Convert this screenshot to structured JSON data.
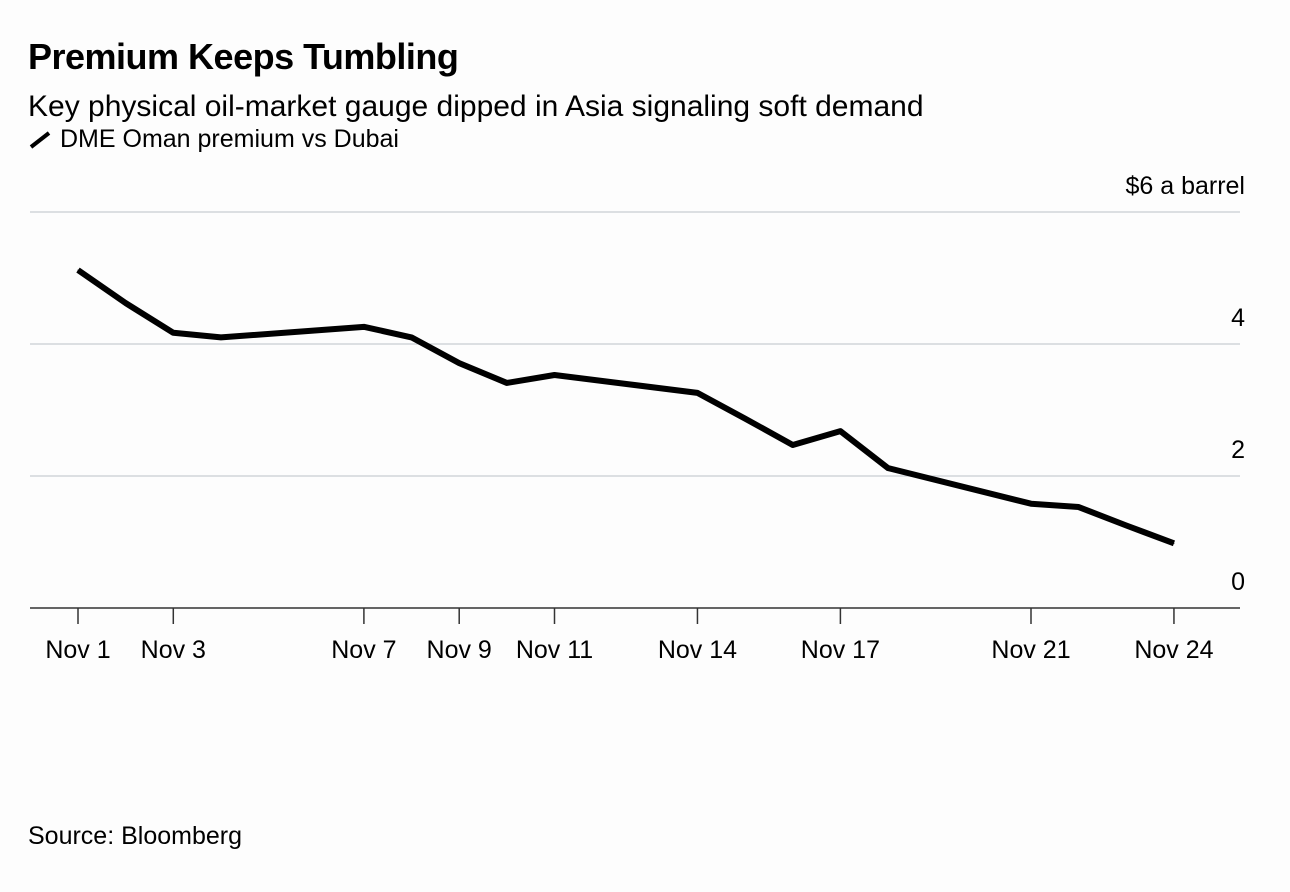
{
  "chart_data": {
    "type": "line",
    "title": "Premium Keeps Tumbling",
    "subtitle": "Key physical oil-market gauge dipped in Asia signaling soft demand",
    "ylabel": "$6 a barrel",
    "ylim": [
      0,
      6
    ],
    "yticks": [
      0,
      2,
      4,
      6
    ],
    "ytick_labels": [
      "0",
      "2",
      "4",
      "$6 a barrel"
    ],
    "xticks": [
      1,
      3,
      7,
      9,
      11,
      14,
      17,
      21,
      24
    ],
    "xtick_labels": [
      "Nov 1",
      "Nov 3",
      "Nov 7",
      "Nov 9",
      "Nov 11",
      "Nov 14",
      "Nov 17",
      "Nov 21",
      "Nov 24"
    ],
    "grid": true,
    "legend_position": "top-left",
    "series": [
      {
        "name": "DME Oman premium vs Dubai",
        "color": "#000000",
        "x": [
          1,
          2,
          3,
          4,
          7,
          8,
          9,
          10,
          11,
          14,
          15,
          16,
          17,
          18,
          21,
          22,
          23,
          24
        ],
        "y": [
          5.12,
          4.62,
          4.17,
          4.1,
          4.26,
          4.1,
          3.71,
          3.41,
          3.53,
          3.26,
          2.87,
          2.47,
          2.68,
          2.12,
          1.58,
          1.53,
          1.25,
          0.98
        ]
      }
    ],
    "source": "Source: Bloomberg"
  }
}
